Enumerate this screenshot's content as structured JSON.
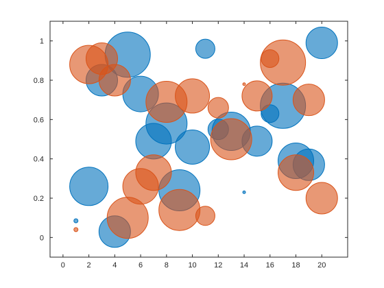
{
  "chart_data": {
    "type": "scatter",
    "subtype": "bubble",
    "title": "",
    "xlabel": "",
    "ylabel": "",
    "xlim": [
      -1,
      22
    ],
    "ylim": [
      -0.1,
      1.1
    ],
    "xticks": [
      0,
      2,
      4,
      6,
      8,
      10,
      12,
      14,
      16,
      18,
      20
    ],
    "yticks": [
      0,
      0.2,
      0.4,
      0.6,
      0.8,
      1
    ],
    "ytick_labels": [
      "0",
      "0.2",
      "0.4",
      "0.6",
      "0.8",
      "1"
    ],
    "grid": false,
    "legend": "none",
    "series": [
      {
        "color": "#0072BD",
        "fill_opacity": 0.6,
        "points": [
          {
            "x": 1,
            "y": 0.085,
            "size": 3
          },
          {
            "x": 2,
            "y": 0.26,
            "size": 28
          },
          {
            "x": 3,
            "y": 0.8,
            "size": 23
          },
          {
            "x": 4,
            "y": 0.03,
            "size": 23
          },
          {
            "x": 5,
            "y": 0.93,
            "size": 33
          },
          {
            "x": 6,
            "y": 0.73,
            "size": 26
          },
          {
            "x": 7,
            "y": 0.49,
            "size": 26
          },
          {
            "x": 8,
            "y": 0.58,
            "size": 30
          },
          {
            "x": 9,
            "y": 0.24,
            "size": 30
          },
          {
            "x": 10,
            "y": 0.46,
            "size": 25
          },
          {
            "x": 11,
            "y": 0.96,
            "size": 14
          },
          {
            "x": 12,
            "y": 0.55,
            "size": 15
          },
          {
            "x": 13,
            "y": 0.54,
            "size": 28
          },
          {
            "x": 14,
            "y": 0.23,
            "size": 2
          },
          {
            "x": 15,
            "y": 0.49,
            "size": 22
          },
          {
            "x": 16,
            "y": 0.63,
            "size": 13
          },
          {
            "x": 17,
            "y": 0.67,
            "size": 33
          },
          {
            "x": 18,
            "y": 0.39,
            "size": 26
          },
          {
            "x": 19,
            "y": 0.37,
            "size": 23
          },
          {
            "x": 20,
            "y": 0.99,
            "size": 23
          }
        ]
      },
      {
        "color": "#D95319",
        "fill_opacity": 0.6,
        "points": [
          {
            "x": 1,
            "y": 0.04,
            "size": 3
          },
          {
            "x": 2,
            "y": 0.88,
            "size": 28
          },
          {
            "x": 3,
            "y": 0.91,
            "size": 23
          },
          {
            "x": 4,
            "y": 0.8,
            "size": 23
          },
          {
            "x": 5,
            "y": 0.1,
            "size": 30
          },
          {
            "x": 6,
            "y": 0.26,
            "size": 26
          },
          {
            "x": 7,
            "y": 0.33,
            "size": 26
          },
          {
            "x": 8,
            "y": 0.69,
            "size": 30
          },
          {
            "x": 9,
            "y": 0.14,
            "size": 30
          },
          {
            "x": 10,
            "y": 0.72,
            "size": 25
          },
          {
            "x": 11,
            "y": 0.11,
            "size": 14
          },
          {
            "x": 12,
            "y": 0.66,
            "size": 15
          },
          {
            "x": 13,
            "y": 0.5,
            "size": 30
          },
          {
            "x": 14,
            "y": 0.78,
            "size": 2
          },
          {
            "x": 15,
            "y": 0.72,
            "size": 22
          },
          {
            "x": 16,
            "y": 0.91,
            "size": 13
          },
          {
            "x": 17,
            "y": 0.89,
            "size": 33
          },
          {
            "x": 18,
            "y": 0.33,
            "size": 26
          },
          {
            "x": 19,
            "y": 0.7,
            "size": 23
          },
          {
            "x": 20,
            "y": 0.2,
            "size": 23
          }
        ]
      }
    ]
  }
}
